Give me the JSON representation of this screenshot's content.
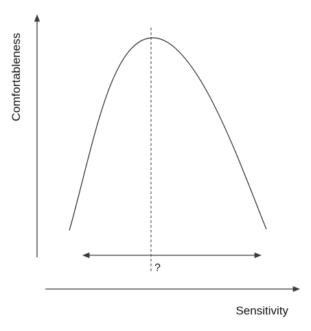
{
  "diagram": {
    "y_axis_label": "Comfortableness",
    "x_axis_label": "Sensitivity",
    "optimum_marker": "?",
    "colors": {
      "lines": "#3a3a3a",
      "text": "#111111",
      "background": "#ffffff"
    }
  }
}
